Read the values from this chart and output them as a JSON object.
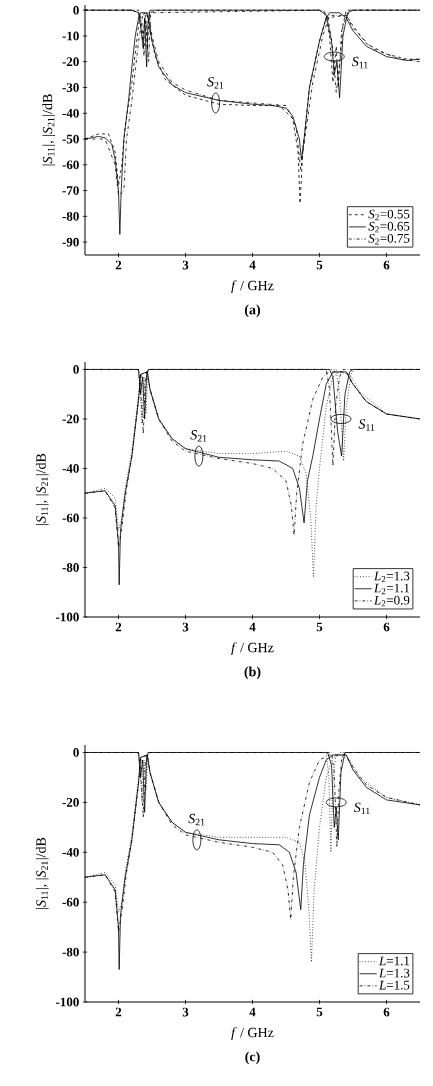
{
  "chart_data": [
    {
      "type": "line",
      "title": "(a)",
      "xlabel": "*f* / GHz",
      "ylabel": "|*S*$_{11}$|, |*S*$_{21}$|/dB",
      "xlim": [
        1.5,
        6.5
      ],
      "xticks": [
        2,
        3,
        4,
        5,
        6
      ],
      "ylim": [
        -95,
        2
      ],
      "yticks": [
        -90,
        -80,
        -70,
        -60,
        -50,
        -40,
        -30,
        -20,
        -10,
        0
      ],
      "grid": false,
      "legend": "bottom right",
      "marker": "none",
      "annotations": [
        {
          "text": "*S*$_{21}$",
          "x": 3.45,
          "y": -36
        },
        {
          "text": "*S*$_{11}$",
          "x": 5.22,
          "y": -18
        }
      ],
      "series": [
        {
          "name": "*S*$_{2}$=0.55",
          "color": "#000000",
          "line_style": "dashed",
          "x": [
            1.5,
            1.7,
            1.85,
            1.95,
            2.0,
            2.05,
            2.1,
            2.2,
            2.28,
            2.32,
            2.42,
            2.47,
            2.55,
            2.7,
            3.0,
            3.5,
            4.0,
            4.4,
            4.6,
            4.68,
            4.71,
            4.75,
            4.85,
            5.0,
            5.1,
            5.4,
            5.5,
            5.7,
            6.0,
            6.3,
            6.5
          ],
          "values": [
            -50,
            -48,
            -48,
            -55,
            -68,
            -60,
            -45,
            -28,
            -10,
            -2,
            -1,
            -8,
            -18,
            -27,
            -33,
            -36.5,
            -37,
            -37,
            -42,
            -55,
            -75,
            -55,
            -30,
            -12,
            -3,
            -2,
            -6,
            -13,
            -17,
            -19,
            -19
          ]
        },
        {
          "color": "#000000",
          "line_style": "dashed",
          "x": [
            1.5,
            2.2,
            2.3,
            2.32,
            2.36,
            2.4,
            2.43,
            2.46,
            2.6,
            5.0,
            5.08,
            5.15,
            5.2,
            5.25,
            5.28,
            5.33,
            5.4,
            6.5
          ],
          "values": [
            0,
            0,
            -1,
            -3,
            -12,
            -2,
            -15,
            -1,
            0,
            0,
            -1,
            -10,
            -28,
            -14,
            -30,
            -8,
            0,
            0
          ]
        },
        {
          "name": "*S*$_{2}$=0.65",
          "color": "#000000",
          "line_style": "solid",
          "x": [
            1.5,
            1.6,
            1.7,
            1.8,
            1.9,
            1.95,
            2.0,
            2.02,
            2.04,
            2.08,
            2.15,
            2.2,
            2.25,
            2.3,
            2.33,
            2.38,
            2.42,
            2.46,
            2.5,
            2.6,
            2.8,
            3.0,
            3.5,
            4.0,
            4.3,
            4.5,
            4.6,
            4.7,
            4.73,
            4.77,
            4.85,
            5.0,
            5.1,
            5.15,
            5.3,
            5.4,
            5.5,
            5.7,
            6.0,
            6.3,
            6.5
          ],
          "values": [
            -50,
            -49.5,
            -49,
            -49.5,
            -52,
            -58,
            -70,
            -87,
            -70,
            -50,
            -35,
            -22,
            -10,
            -3,
            -1,
            -1,
            -1,
            -5,
            -12,
            -22,
            -29,
            -32,
            -35,
            -36.5,
            -37,
            -38,
            -41,
            -50,
            -58,
            -50,
            -30,
            -12,
            -3,
            -1,
            -1,
            -3,
            -8,
            -14,
            -18,
            -19.5,
            -19
          ]
        },
        {
          "color": "#000000",
          "line_style": "solid",
          "x": [
            1.5,
            2.2,
            2.3,
            2.34,
            2.37,
            2.39,
            2.42,
            2.44,
            2.47,
            5.0,
            5.1,
            5.18,
            5.22,
            5.26,
            5.3,
            5.35,
            5.42,
            5.5,
            6.5
          ],
          "values": [
            0,
            0,
            -1,
            -8,
            -15,
            -3,
            -22,
            -5,
            0,
            0,
            -2,
            -12,
            -25,
            -20,
            -34,
            -10,
            -1,
            0,
            0
          ]
        },
        {
          "name": "*S*$_{2}$=0.75",
          "color": "#000000",
          "line_style": "dashdot",
          "x": [
            1.5,
            1.8,
            1.95,
            2.0,
            2.08,
            2.12,
            2.2,
            2.3,
            2.36,
            2.45,
            2.5,
            2.6,
            2.8,
            3.0,
            3.5,
            4.0,
            4.5,
            4.65,
            4.72,
            4.78,
            4.9,
            5.05,
            5.15,
            5.4,
            5.5,
            5.8,
            6.2,
            6.5
          ],
          "values": [
            -50,
            -50,
            -60,
            -72,
            -70,
            -50,
            -35,
            -12,
            -2,
            -1,
            -10,
            -20,
            -28,
            -31,
            -35,
            -36,
            -37,
            -45,
            -62,
            -50,
            -28,
            -10,
            -2,
            -2,
            -7,
            -15,
            -19,
            -20
          ]
        },
        {
          "color": "#000000",
          "line_style": "dashdot",
          "x": [
            1.5,
            2.3,
            2.35,
            2.38,
            2.41,
            2.45,
            2.48,
            5.05,
            5.12,
            5.2,
            5.25,
            5.3,
            5.35,
            5.45,
            6.5
          ],
          "values": [
            0,
            0,
            -5,
            -18,
            -4,
            -20,
            -1,
            0,
            -2,
            -15,
            -32,
            -22,
            -6,
            0,
            0
          ]
        }
      ]
    },
    {
      "type": "line",
      "title": "(b)",
      "xlabel": "*f* / GHz",
      "ylabel": "|*S*$_{11}$|, |*S*$_{21}$|/dB",
      "xlim": [
        1.5,
        6.5
      ],
      "xticks": [
        2,
        3,
        4,
        5,
        6
      ],
      "ylim": [
        -100,
        3
      ],
      "yticks": [
        -100,
        -80,
        -60,
        -40,
        -20,
        0
      ],
      "grid": false,
      "legend": "bottom right",
      "marker": "none",
      "annotations": [
        {
          "text": "*S*$_{21}$",
          "x": 3.2,
          "y": -35
        },
        {
          "text": "*S*$_{11}$",
          "x": 5.32,
          "y": -20
        }
      ],
      "series": [
        {
          "name": "*L*$_{2}$=1.3",
          "color": "#000000",
          "line_style": "dotted",
          "x": [
            1.5,
            1.8,
            1.95,
            2.0,
            2.05,
            2.1,
            2.2,
            2.3,
            2.33,
            2.43,
            2.47,
            2.6,
            2.8,
            3.0,
            3.5,
            4.0,
            4.5,
            4.7,
            4.8,
            4.87,
            4.91,
            4.95,
            5.0,
            5.1,
            5.2,
            5.3,
            5.45,
            5.6,
            6.0,
            6.5
          ],
          "values": [
            -50,
            -48,
            -52,
            -65,
            -60,
            -48,
            -33,
            -10,
            -2,
            -1,
            -8,
            -20,
            -28,
            -32,
            -34,
            -34,
            -33,
            -35,
            -42,
            -60,
            -84,
            -55,
            -40,
            -15,
            -3,
            -1,
            -2,
            -9,
            -18,
            -20
          ]
        },
        {
          "color": "#000000",
          "line_style": "dotted",
          "x": [
            1.5,
            2.3,
            2.32,
            2.35,
            2.38,
            2.41,
            2.44,
            5.25,
            5.3,
            5.36,
            5.4,
            5.47,
            5.52,
            6.5
          ],
          "values": [
            0,
            0,
            -5,
            -22,
            -3,
            -18,
            0,
            0,
            -10,
            -37,
            -15,
            -2,
            0,
            0
          ]
        },
        {
          "name": "*L*$_{2}$=1.1",
          "color": "#000000",
          "line_style": "solid",
          "x": [
            1.5,
            1.8,
            1.95,
            2.0,
            2.01,
            2.03,
            2.1,
            2.2,
            2.3,
            2.33,
            2.43,
            2.47,
            2.6,
            2.8,
            3.0,
            3.5,
            4.0,
            4.4,
            4.6,
            4.7,
            4.77,
            4.82,
            4.9,
            5.0,
            5.1,
            5.2,
            5.4,
            5.5,
            5.7,
            6.0,
            6.5
          ],
          "values": [
            -50,
            -49,
            -55,
            -70,
            -87,
            -65,
            -50,
            -35,
            -12,
            -2,
            -1,
            -8,
            -20,
            -28,
            -32,
            -35.5,
            -36.5,
            -37,
            -40,
            -48,
            -62,
            -45,
            -35,
            -20,
            -6,
            -1,
            -1,
            -6,
            -13,
            -18,
            -20
          ]
        },
        {
          "color": "#000000",
          "line_style": "solid",
          "x": [
            1.5,
            2.3,
            2.33,
            2.36,
            2.39,
            2.42,
            2.45,
            5.15,
            5.2,
            5.27,
            5.3,
            5.33,
            5.38,
            5.45,
            5.5,
            6.5
          ],
          "values": [
            0,
            0,
            -10,
            -3,
            -20,
            -2,
            0,
            0,
            -3,
            -25,
            -30,
            -35,
            -10,
            -1,
            0,
            0
          ]
        },
        {
          "name": "*L*$_{2}$=0.9",
          "color": "#000000",
          "line_style": "dashdot",
          "x": [
            1.5,
            1.8,
            1.95,
            2.0,
            2.05,
            2.12,
            2.2,
            2.3,
            2.34,
            2.43,
            2.47,
            2.6,
            2.8,
            3.0,
            3.5,
            4.0,
            4.3,
            4.5,
            4.58,
            4.62,
            4.66,
            4.75,
            4.9,
            5.05,
            5.15,
            5.4,
            5.5,
            5.7,
            6.0,
            6.5
          ],
          "values": [
            -50,
            -49,
            -56,
            -72,
            -64,
            -48,
            -35,
            -12,
            -2,
            -1,
            -8,
            -20,
            -29,
            -33,
            -36,
            -38,
            -40,
            -45,
            -55,
            -67,
            -50,
            -30,
            -12,
            -3,
            -1,
            -1,
            -6,
            -13,
            -18,
            -20
          ]
        },
        {
          "color": "#000000",
          "line_style": "dashdot",
          "x": [
            1.5,
            2.29,
            2.31,
            2.34,
            2.37,
            2.4,
            2.43,
            5.1,
            5.15,
            5.2,
            5.24,
            5.3,
            5.35,
            6.5
          ],
          "values": [
            0,
            0,
            -3,
            -12,
            -26,
            -5,
            0,
            0,
            -8,
            -39,
            -15,
            -3,
            0,
            0
          ]
        }
      ]
    },
    {
      "type": "line",
      "title": "(c)",
      "xlabel": "*f* / GHz",
      "ylabel": "|*S*$_{11}$|, |*S*$_{21}$|/dB",
      "xlim": [
        1.5,
        6.5
      ],
      "xticks": [
        2,
        3,
        4,
        5,
        6
      ],
      "ylim": [
        -100,
        3
      ],
      "yticks": [
        -100,
        -80,
        -60,
        -40,
        -20,
        0
      ],
      "grid": false,
      "legend": "bottom right",
      "marker": "none",
      "annotations": [
        {
          "text": "*S*$_{21}$",
          "x": 3.17,
          "y": -35
        },
        {
          "text": "*S*$_{11}$",
          "x": 5.25,
          "y": -20
        }
      ],
      "series": [
        {
          "name": "*L*=1.1",
          "color": "#000000",
          "line_style": "dotted",
          "x": [
            1.5,
            1.8,
            1.95,
            2.0,
            2.05,
            2.1,
            2.2,
            2.3,
            2.33,
            2.43,
            2.47,
            2.6,
            2.8,
            3.0,
            3.5,
            4.0,
            4.5,
            4.7,
            4.78,
            4.84,
            4.88,
            4.92,
            5.0,
            5.1,
            5.2,
            5.3,
            5.45,
            5.6,
            6.0,
            6.5
          ],
          "values": [
            -50,
            -48,
            -53,
            -64,
            -60,
            -48,
            -33,
            -10,
            -2,
            -1,
            -8,
            -20,
            -28,
            -32,
            -34,
            -34,
            -34,
            -36,
            -44,
            -62,
            -84,
            -55,
            -30,
            -10,
            -2,
            -1,
            -3,
            -10,
            -18,
            -21
          ]
        },
        {
          "color": "#000000",
          "line_style": "dotted",
          "x": [
            1.5,
            2.3,
            2.32,
            2.35,
            2.38,
            2.41,
            2.44,
            5.1,
            5.14,
            5.17,
            5.2,
            5.24,
            5.3,
            6.5
          ],
          "values": [
            0,
            0,
            -5,
            -20,
            -3,
            -15,
            0,
            0,
            -10,
            -40,
            -12,
            -2,
            0,
            0
          ]
        },
        {
          "name": "*L*=1.3",
          "color": "#000000",
          "line_style": "solid",
          "x": [
            1.5,
            1.8,
            1.95,
            2.0,
            2.01,
            2.03,
            2.1,
            2.2,
            2.3,
            2.33,
            2.43,
            2.47,
            2.6,
            2.8,
            3.0,
            3.5,
            4.0,
            4.4,
            4.55,
            4.65,
            4.72,
            4.76,
            4.85,
            5.0,
            5.1,
            5.2,
            5.4,
            5.5,
            5.7,
            6.0,
            6.5
          ],
          "values": [
            -50,
            -49,
            -55,
            -70,
            -87,
            -65,
            -50,
            -35,
            -12,
            -2,
            -1,
            -8,
            -20,
            -28,
            -32,
            -35,
            -36.5,
            -37,
            -40,
            -48,
            -63,
            -45,
            -25,
            -10,
            -3,
            -1,
            -1,
            -7,
            -14,
            -19,
            -21
          ]
        },
        {
          "color": "#000000",
          "line_style": "solid",
          "x": [
            1.5,
            2.3,
            2.33,
            2.36,
            2.39,
            2.42,
            2.45,
            5.12,
            5.18,
            5.22,
            5.25,
            5.28,
            5.32,
            5.38,
            6.5
          ],
          "values": [
            0,
            0,
            -10,
            -3,
            -24,
            -2,
            0,
            0,
            -5,
            -30,
            -22,
            -35,
            -8,
            0,
            0
          ]
        },
        {
          "name": "*L*=1.5",
          "color": "#000000",
          "line_style": "dashdot",
          "x": [
            1.5,
            1.8,
            1.95,
            2.0,
            2.05,
            2.12,
            2.2,
            2.3,
            2.34,
            2.43,
            2.47,
            2.6,
            2.8,
            3.0,
            3.5,
            4.0,
            4.3,
            4.45,
            4.53,
            4.57,
            4.61,
            4.7,
            4.85,
            5.0,
            5.15,
            5.4,
            5.5,
            5.7,
            6.0,
            6.5
          ],
          "values": [
            -50,
            -49,
            -56,
            -72,
            -64,
            -48,
            -35,
            -12,
            -2,
            -1,
            -8,
            -20,
            -29,
            -33,
            -36,
            -38,
            -40,
            -45,
            -55,
            -67,
            -50,
            -30,
            -12,
            -3,
            -1,
            -1,
            -6,
            -13,
            -18,
            -21
          ]
        },
        {
          "color": "#000000",
          "line_style": "dashdot",
          "x": [
            1.5,
            2.29,
            2.31,
            2.34,
            2.37,
            2.4,
            2.43,
            5.18,
            5.22,
            5.26,
            5.29,
            5.33,
            5.38,
            6.5
          ],
          "values": [
            0,
            0,
            -3,
            -12,
            -26,
            -5,
            0,
            0,
            -8,
            -38,
            -15,
            -3,
            0,
            0
          ]
        }
      ]
    }
  ]
}
